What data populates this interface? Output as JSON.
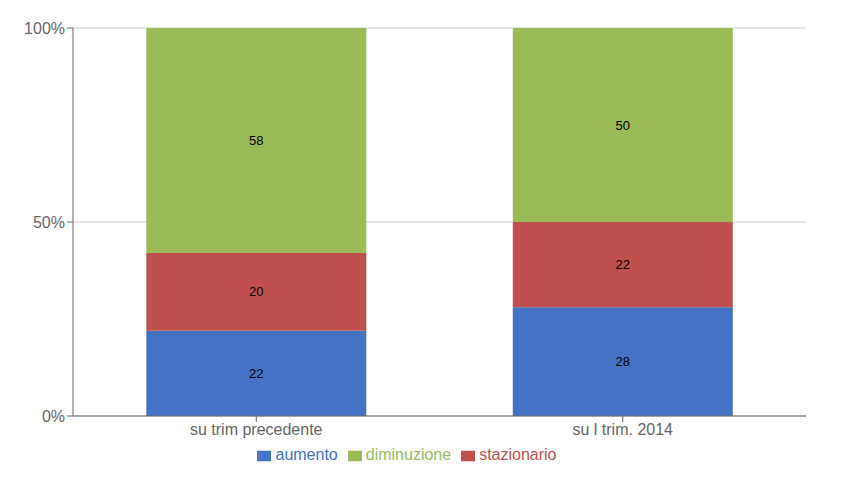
{
  "chart_data": {
    "type": "bar",
    "stacked": true,
    "categories": [
      "su trim precedente",
      "su l trim. 2014"
    ],
    "series": [
      {
        "name": "aumento",
        "color": "#4472C4",
        "values": [
          22,
          28
        ]
      },
      {
        "name": "stazionario",
        "color": "#C0504D",
        "values": [
          20,
          22
        ]
      },
      {
        "name": "diminuzione",
        "color": "#9BBB59",
        "values": [
          58,
          50
        ]
      }
    ],
    "ylim": [
      0,
      100
    ],
    "yticks": [
      {
        "value": 0,
        "label": "0%"
      },
      {
        "value": 50,
        "label": "50%"
      },
      {
        "value": 100,
        "label": "100%"
      }
    ],
    "grid": true,
    "legend": "bottom",
    "data_labels": true
  }
}
